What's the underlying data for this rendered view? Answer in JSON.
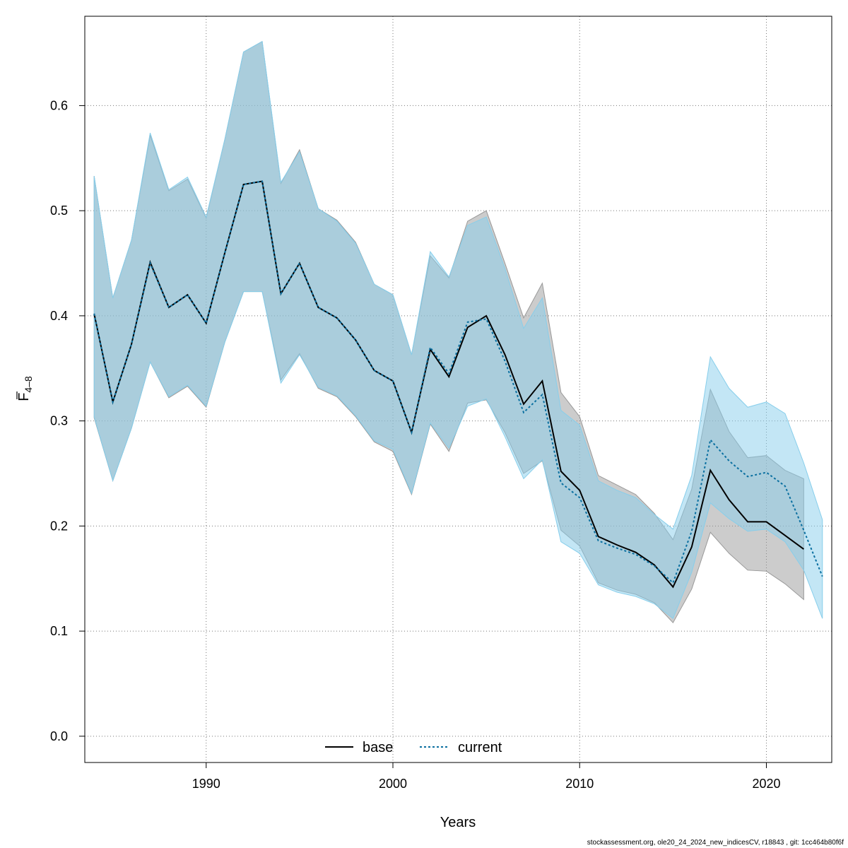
{
  "chart_data": {
    "type": "line",
    "xlabel": "Years",
    "ylabel": {
      "main": "F",
      "sub": "4–8"
    },
    "xlim": [
      1983.5,
      2023.5
    ],
    "ylim": [
      -0.025,
      0.685
    ],
    "x_ticks": [
      1990,
      2000,
      2010,
      2020
    ],
    "y_ticks": [
      "0.0",
      "0.1",
      "0.2",
      "0.3",
      "0.4",
      "0.5",
      "0.6"
    ],
    "grid": true,
    "legend_position": "bottom-center",
    "series": [
      {
        "name": "base",
        "line_color": "#000000",
        "band_color": "#999999",
        "line_style": "solid",
        "x": [
          1984,
          1985,
          1986,
          1987,
          1988,
          1989,
          1990,
          1991,
          1992,
          1993,
          1994,
          1995,
          1996,
          1997,
          1998,
          1999,
          2000,
          2001,
          2002,
          2003,
          2004,
          2005,
          2006,
          2007,
          2008,
          2009,
          2010,
          2011,
          2012,
          2013,
          2014,
          2015,
          2016,
          2017,
          2018,
          2019,
          2020,
          2021,
          2022
        ],
        "values": [
          0.402,
          0.318,
          0.373,
          0.451,
          0.408,
          0.42,
          0.393,
          0.46,
          0.525,
          0.528,
          0.421,
          0.45,
          0.408,
          0.398,
          0.377,
          0.348,
          0.338,
          0.289,
          0.368,
          0.342,
          0.389,
          0.4,
          0.363,
          0.316,
          0.338,
          0.252,
          0.234,
          0.19,
          0.182,
          0.175,
          0.163,
          0.142,
          0.18,
          0.253,
          0.225,
          0.204,
          0.204,
          0.191,
          0.178
        ],
        "lower": [
          0.303,
          0.243,
          0.293,
          0.356,
          0.322,
          0.333,
          0.313,
          0.375,
          0.423,
          0.423,
          0.339,
          0.364,
          0.331,
          0.323,
          0.304,
          0.28,
          0.271,
          0.23,
          0.297,
          0.271,
          0.317,
          0.32,
          0.289,
          0.25,
          0.262,
          0.196,
          0.181,
          0.146,
          0.139,
          0.135,
          0.127,
          0.108,
          0.14,
          0.194,
          0.174,
          0.158,
          0.157,
          0.145,
          0.13
        ],
        "upper": [
          0.533,
          0.417,
          0.472,
          0.572,
          0.519,
          0.53,
          0.493,
          0.568,
          0.651,
          0.661,
          0.526,
          0.558,
          0.502,
          0.491,
          0.47,
          0.43,
          0.42,
          0.363,
          0.457,
          0.436,
          0.49,
          0.5,
          0.45,
          0.398,
          0.431,
          0.327,
          0.304,
          0.248,
          0.239,
          0.23,
          0.212,
          0.187,
          0.235,
          0.33,
          0.29,
          0.265,
          0.267,
          0.253,
          0.245
        ]
      },
      {
        "name": "current",
        "line_color": "#0a6fa0",
        "band_color": "#87ceeb",
        "line_style": "dotted",
        "x": [
          1984,
          1985,
          1986,
          1987,
          1988,
          1989,
          1990,
          1991,
          1992,
          1993,
          1994,
          1995,
          1996,
          1997,
          1998,
          1999,
          2000,
          2001,
          2002,
          2003,
          2004,
          2005,
          2006,
          2007,
          2008,
          2009,
          2010,
          2011,
          2012,
          2013,
          2014,
          2015,
          2016,
          2017,
          2018,
          2019,
          2020,
          2021,
          2022,
          2023
        ],
        "values": [
          0.402,
          0.318,
          0.373,
          0.45,
          0.408,
          0.42,
          0.393,
          0.46,
          0.525,
          0.528,
          0.421,
          0.45,
          0.408,
          0.398,
          0.377,
          0.348,
          0.338,
          0.289,
          0.37,
          0.345,
          0.394,
          0.397,
          0.357,
          0.308,
          0.325,
          0.241,
          0.227,
          0.186,
          0.179,
          0.173,
          0.162,
          0.146,
          0.195,
          0.282,
          0.262,
          0.247,
          0.251,
          0.238,
          0.196,
          0.152
        ],
        "lower": [
          0.304,
          0.243,
          0.293,
          0.356,
          0.323,
          0.334,
          0.314,
          0.375,
          0.423,
          0.423,
          0.336,
          0.363,
          0.332,
          0.324,
          0.305,
          0.281,
          0.273,
          0.231,
          0.298,
          0.274,
          0.314,
          0.321,
          0.285,
          0.245,
          0.263,
          0.185,
          0.174,
          0.144,
          0.137,
          0.133,
          0.126,
          0.112,
          0.156,
          0.222,
          0.207,
          0.195,
          0.197,
          0.185,
          0.158,
          0.112
        ],
        "upper": [
          0.533,
          0.417,
          0.472,
          0.574,
          0.52,
          0.532,
          0.494,
          0.568,
          0.651,
          0.661,
          0.527,
          0.556,
          0.502,
          0.49,
          0.469,
          0.43,
          0.42,
          0.363,
          0.461,
          0.437,
          0.486,
          0.494,
          0.445,
          0.388,
          0.417,
          0.31,
          0.296,
          0.243,
          0.234,
          0.227,
          0.211,
          0.197,
          0.248,
          0.361,
          0.331,
          0.313,
          0.318,
          0.307,
          0.26,
          0.206
        ]
      }
    ]
  },
  "footer": "stockassessment.org, ole20_24_2024_new_indicesCV, r18843 , git: 1cc464b80f6f"
}
